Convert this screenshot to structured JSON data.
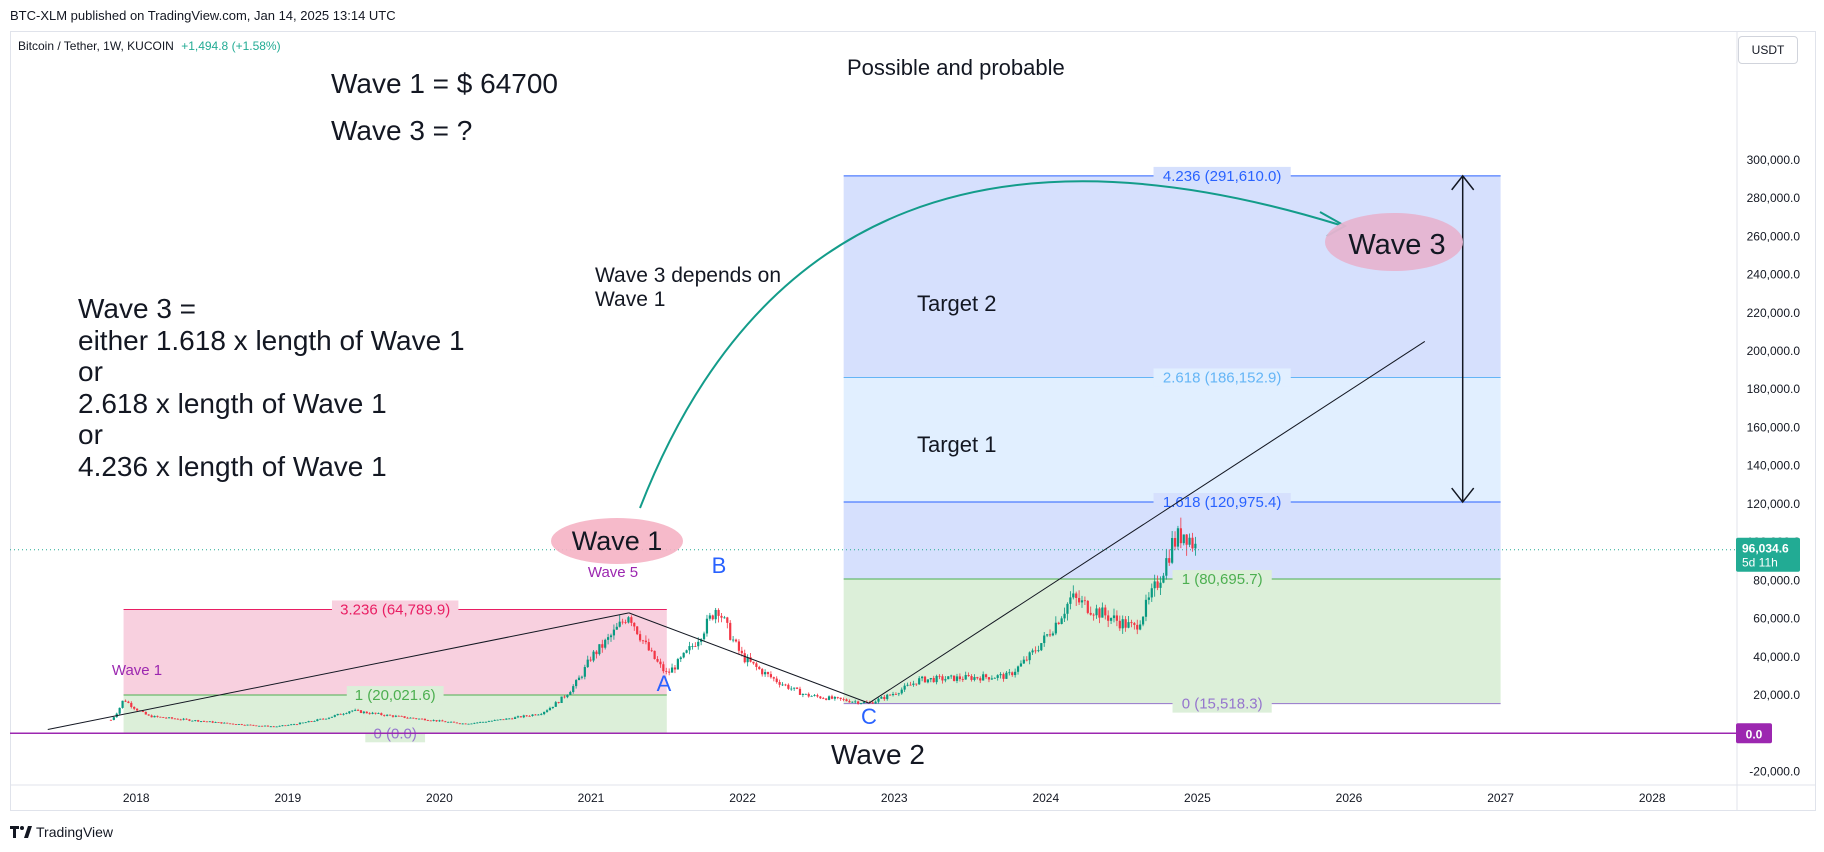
{
  "header": {
    "published": "BTC-XLM published on TradingView.com, Jan 14, 2025 13:14 UTC",
    "symbol": "Bitcoin / Tether, 1W, KUCOIN",
    "change": "+1,494.8 (+1.58%)",
    "currency": "USDT"
  },
  "footer": {
    "brand": "TradingView"
  },
  "colors": {
    "up": "#089981",
    "down": "#f23645",
    "pink_zone": "#f8d0df",
    "green_zone": "#dcefd9",
    "blue_zone": "#d6e0fd",
    "lightblue_zone": "#e1efff",
    "arc": "#139c8a",
    "zero_line": "#9c27b0",
    "price_label": "#22ab94"
  },
  "annotations": {
    "wave1_eq": "Wave 1  = $ 64700",
    "wave3_q": "Wave 3 = ?",
    "wave3_def": [
      "Wave 3 =",
      " either 1.618 x length of Wave 1",
      "or",
      " 2.618 x length of Wave 1",
      "or",
      "4.236 x length of Wave 1"
    ],
    "depends": [
      "Wave 3 depends on",
      "Wave 1"
    ],
    "possible": "Possible and probable",
    "target2": "Target 2",
    "target1": "Target 1",
    "wave1_big": "Wave 1",
    "wave3_big": "Wave 3",
    "wave2": "Wave 2",
    "wave1_small": "Wave 1",
    "wave5_small": "Wave 5",
    "A": "A",
    "B": "B",
    "C": "C"
  },
  "chart_data": {
    "type": "candlestick",
    "timeframe": "1W",
    "x_ticks": [
      "2018",
      "2019",
      "2020",
      "2021",
      "2022",
      "2023",
      "2024",
      "2025",
      "2026",
      "2027",
      "2028"
    ],
    "y_ticks": [
      "300,000.0",
      "280,000.0",
      "260,000.0",
      "240,000.0",
      "220,000.0",
      "200,000.0",
      "180,000.0",
      "160,000.0",
      "140,000.0",
      "120,000.0",
      "100,000.0",
      "80,000.0",
      "60,000.0",
      "40,000.0",
      "20,000.0",
      "-20,000.0"
    ],
    "y_range": [
      -20000,
      300000
    ],
    "current_price": {
      "value": 96034.6,
      "label": "96,034.6",
      "countdown": "5d 11h"
    },
    "zero_label": "0.0",
    "price_path": [
      [
        "2017-06",
        3000
      ],
      [
        "2017-11",
        7000
      ],
      [
        "2017-12",
        18000
      ],
      [
        "2018-02",
        9000
      ],
      [
        "2018-06",
        6500
      ],
      [
        "2018-12",
        3500
      ],
      [
        "2019-06",
        12000
      ],
      [
        "2019-12",
        7200
      ],
      [
        "2020-03",
        5000
      ],
      [
        "2020-09",
        10500
      ],
      [
        "2020-12",
        28000
      ],
      [
        "2021-01",
        40000
      ],
      [
        "2021-04",
        63000
      ],
      [
        "2021-07",
        31000
      ],
      [
        "2021-11",
        67000
      ],
      [
        "2022-01",
        40000
      ],
      [
        "2022-06",
        20000
      ],
      [
        "2022-11",
        15800
      ],
      [
        "2023-03",
        28000
      ],
      [
        "2023-10",
        30000
      ],
      [
        "2024-03",
        71000
      ],
      [
        "2024-08",
        55000
      ],
      [
        "2024-11",
        99000
      ],
      [
        "2024-12",
        106000
      ],
      [
        "2025-01",
        96000
      ]
    ],
    "fib_left": {
      "levels": [
        {
          "ratio": "3.236",
          "value": 64789.9,
          "label": "3.236 (64,789.9)"
        },
        {
          "ratio": "1",
          "value": 20021.6,
          "label": "1 (20,021.6)"
        },
        {
          "ratio": "0",
          "value": 0.0,
          "label": "0 (0.0)"
        }
      ],
      "from": "2017-12",
      "to": "2021-07"
    },
    "fib_right": {
      "levels": [
        {
          "ratio": "4.236",
          "value": 291610.0,
          "label": "4.236 (291,610.0)"
        },
        {
          "ratio": "2.618",
          "value": 186152.9,
          "label": "2.618 (186,152.9)"
        },
        {
          "ratio": "1.618",
          "value": 120975.4,
          "label": "1.618 (120,975.4)"
        },
        {
          "ratio": "1",
          "value": 80695.7,
          "label": "1 (80,695.7)"
        },
        {
          "ratio": "0",
          "value": 15518.3,
          "label": "0 (15,518.3)"
        }
      ],
      "from": "2022-09",
      "to": "2027-01"
    },
    "trend_lines": [
      {
        "from": [
          "2017-06",
          2000
        ],
        "to": [
          "2021-04",
          63000
        ]
      },
      {
        "from": [
          "2021-04",
          63000
        ],
        "to": [
          "2022-11",
          15800
        ]
      },
      {
        "from": [
          "2022-11",
          15800
        ],
        "to": [
          "2026-07",
          205000
        ]
      }
    ],
    "range_arrow": {
      "x": "2026-10",
      "from": 120975.4,
      "to": 291610.0
    }
  }
}
